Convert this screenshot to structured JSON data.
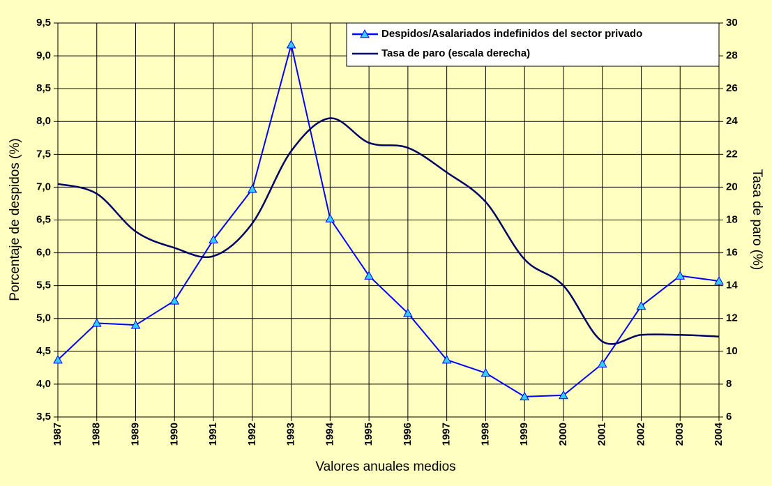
{
  "chart_data": {
    "type": "line",
    "x_label": "Valores anuales medios",
    "y_label": "Porcentaje de despidos (%)",
    "y2_label": "Tasa de paro (%)",
    "categories": [
      "1987",
      "1988",
      "1989",
      "1990",
      "1991",
      "1992",
      "1993",
      "1994",
      "1995",
      "1996",
      "1997",
      "1998",
      "1999",
      "2000",
      "2001",
      "2002",
      "2003",
      "2004"
    ],
    "series": [
      {
        "name": "Despidos/Asalariados indefinidos del sector privado",
        "color": "#0000ff",
        "marker_color": "#33ccff",
        "axis": "y",
        "values": [
          4.37,
          4.93,
          4.9,
          5.27,
          6.2,
          6.97,
          9.17,
          6.52,
          5.65,
          5.08,
          4.37,
          4.17,
          3.81,
          3.83,
          4.31,
          5.19,
          5.65,
          5.57
        ]
      },
      {
        "name": "Tasa de paro (escala derecha)",
        "color": "#000066",
        "axis": "y2",
        "values": [
          20.2,
          19.6,
          17.3,
          16.3,
          15.8,
          17.8,
          22.2,
          24.2,
          22.7,
          22.4,
          20.9,
          19.1,
          15.6,
          14.0,
          10.6,
          11.0,
          11.0,
          10.9
        ]
      }
    ],
    "ylim": [
      3.5,
      9.5
    ],
    "yticks": [
      {
        "value": 3.5,
        "label": "3,5"
      },
      {
        "value": 4,
        "label": "4,0"
      },
      {
        "value": 4.5,
        "label": "4,5"
      },
      {
        "value": 5,
        "label": "5,0"
      },
      {
        "value": 5.5,
        "label": "5,5"
      },
      {
        "value": 6,
        "label": "6,0"
      },
      {
        "value": 6.5,
        "label": "6,5"
      },
      {
        "value": 7,
        "label": "7,0"
      },
      {
        "value": 7.5,
        "label": "7,5"
      },
      {
        "value": 8,
        "label": "8,0"
      },
      {
        "value": 8.5,
        "label": "8,5"
      },
      {
        "value": 9,
        "label": "9,0"
      },
      {
        "value": 9.5,
        "label": "9,5"
      }
    ],
    "y2lim": [
      6,
      30
    ],
    "y2ticks": [
      6,
      8,
      10,
      12,
      14,
      16,
      18,
      20,
      22,
      24,
      26,
      28,
      30
    ],
    "grid": true,
    "legend": "upper right"
  }
}
